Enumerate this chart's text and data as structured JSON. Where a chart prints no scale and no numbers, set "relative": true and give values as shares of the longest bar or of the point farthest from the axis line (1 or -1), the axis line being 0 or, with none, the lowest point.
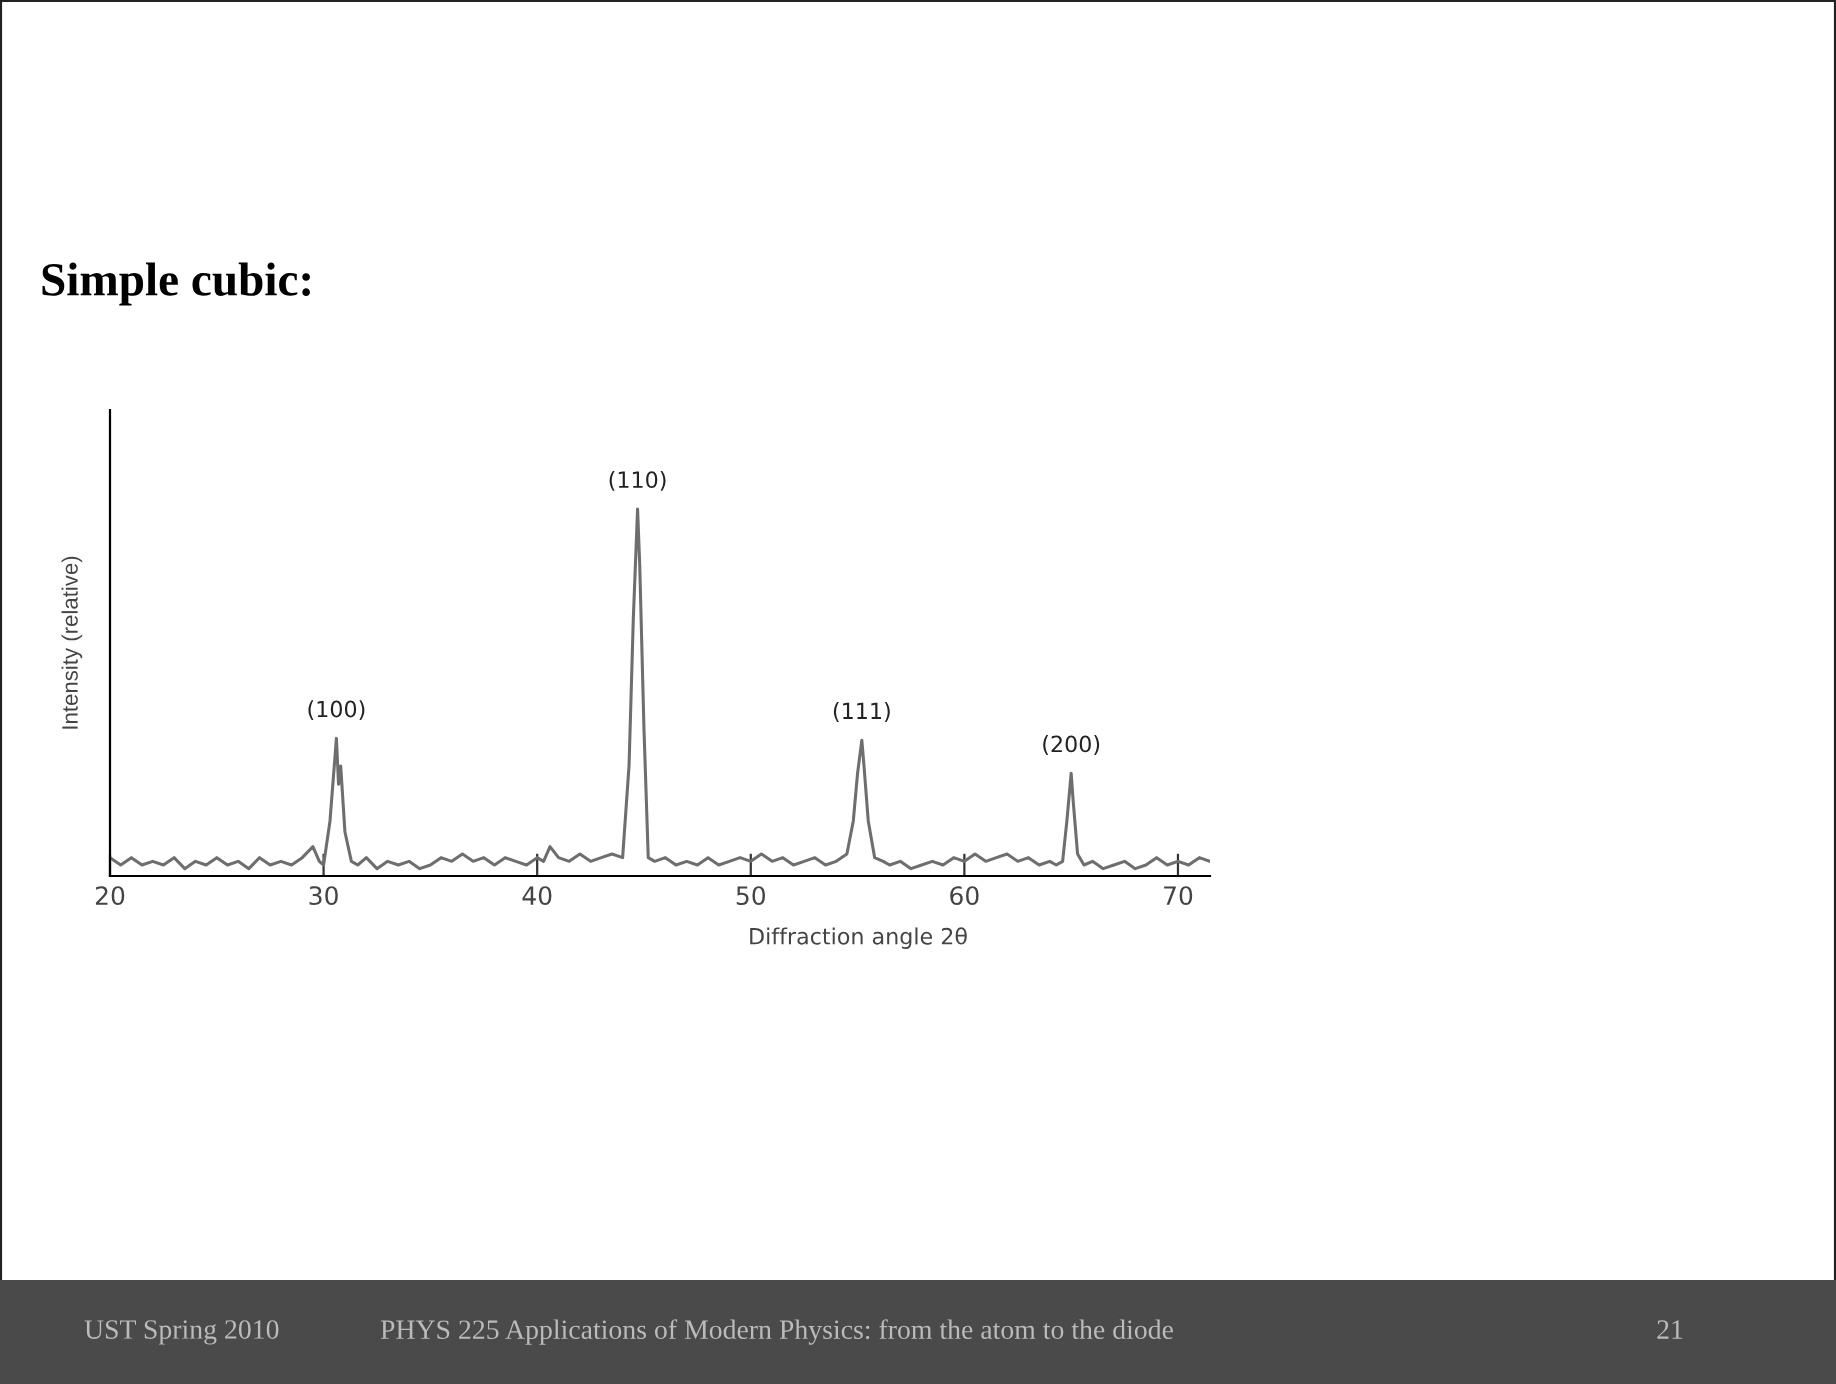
{
  "chart_data": {
    "type": "line",
    "title": "Simple cubic:",
    "relative": true,
    "xlabel": "Diffraction angle 2θ",
    "ylabel": "Intensity (relative)",
    "xlim": [
      20,
      71.5
    ],
    "xticks": [
      20,
      30,
      40,
      50,
      60,
      70
    ],
    "grid": false,
    "legend": false,
    "marker": "none",
    "line_style": "solid",
    "series": [
      {
        "color": "#6e6e6e",
        "x": [
          20,
          20.5,
          21,
          21.5,
          22,
          22.5,
          23,
          23.5,
          24,
          24.5,
          25,
          25.5,
          26,
          26.5,
          27,
          27.5,
          28,
          28.5,
          29,
          29.5,
          29.8,
          30.0,
          30.3,
          30.5,
          30.6,
          30.7,
          30.8,
          31.0,
          31.3,
          31.6,
          32,
          32.5,
          33,
          33.5,
          34,
          34.5,
          35,
          35.5,
          36,
          36.5,
          37,
          37.5,
          38,
          38.5,
          39,
          39.5,
          40,
          40.3,
          40.6,
          41,
          41.5,
          42,
          42.5,
          43,
          43.5,
          44.0,
          44.3,
          44.5,
          44.7,
          44.8,
          45.0,
          45.2,
          45.5,
          46,
          46.5,
          47,
          47.5,
          48,
          48.5,
          49,
          49.5,
          50,
          50.5,
          51,
          51.5,
          52,
          52.5,
          53,
          53.5,
          54,
          54.5,
          54.8,
          55.0,
          55.2,
          55.3,
          55.5,
          55.8,
          56.2,
          56.5,
          57,
          57.5,
          58,
          58.5,
          59,
          59.5,
          60,
          60.5,
          61,
          61.5,
          62,
          62.5,
          63,
          63.5,
          64,
          64.3,
          64.6,
          64.8,
          65.0,
          65.1,
          65.3,
          65.6,
          66,
          66.5,
          67,
          67.5,
          68,
          68.5,
          69,
          69.5,
          70,
          70.5,
          71,
          71.5
        ],
        "values": [
          0.05,
          0.03,
          0.05,
          0.03,
          0.04,
          0.03,
          0.05,
          0.02,
          0.04,
          0.03,
          0.05,
          0.03,
          0.04,
          0.02,
          0.05,
          0.03,
          0.04,
          0.03,
          0.05,
          0.08,
          0.04,
          0.03,
          0.15,
          0.3,
          0.375,
          0.25,
          0.3,
          0.12,
          0.04,
          0.03,
          0.05,
          0.02,
          0.04,
          0.03,
          0.04,
          0.02,
          0.03,
          0.05,
          0.04,
          0.06,
          0.04,
          0.05,
          0.03,
          0.05,
          0.04,
          0.03,
          0.05,
          0.04,
          0.08,
          0.05,
          0.04,
          0.06,
          0.04,
          0.05,
          0.06,
          0.05,
          0.3,
          0.7,
          1.0,
          0.85,
          0.4,
          0.05,
          0.04,
          0.05,
          0.03,
          0.04,
          0.03,
          0.05,
          0.03,
          0.04,
          0.05,
          0.04,
          0.06,
          0.04,
          0.05,
          0.03,
          0.04,
          0.05,
          0.03,
          0.04,
          0.06,
          0.15,
          0.28,
          0.37,
          0.3,
          0.15,
          0.05,
          0.04,
          0.03,
          0.04,
          0.02,
          0.03,
          0.04,
          0.03,
          0.05,
          0.04,
          0.06,
          0.04,
          0.05,
          0.06,
          0.04,
          0.05,
          0.03,
          0.04,
          0.03,
          0.04,
          0.15,
          0.28,
          0.2,
          0.06,
          0.03,
          0.04,
          0.02,
          0.03,
          0.04,
          0.02,
          0.03,
          0.05,
          0.03,
          0.04,
          0.03,
          0.05,
          0.04
        ]
      }
    ],
    "annotations": [
      {
        "text": "(100)",
        "x": 30.6,
        "y": 0.375
      },
      {
        "text": "(110)",
        "x": 44.7,
        "y": 1.0
      },
      {
        "text": "(111)",
        "x": 55.2,
        "y": 0.37
      },
      {
        "text": "(200)",
        "x": 65.0,
        "y": 0.28
      },
      "UST Spring 2010",
      "PHYS 225 Applications of Modern Physics: from the atom to the diode",
      "21"
    ]
  }
}
